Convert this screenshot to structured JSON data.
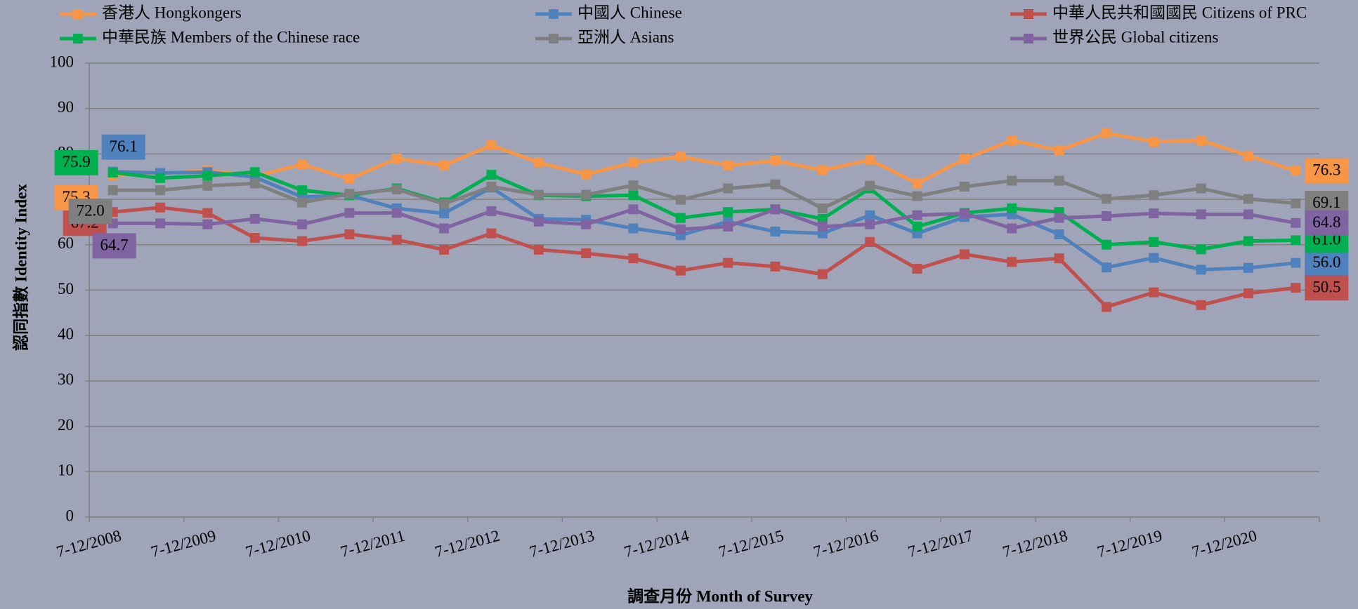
{
  "chart_data": {
    "type": "line",
    "x_label": "調查月份 Month of Survey",
    "y_label": "認同指數 Identity Index",
    "categories": [
      "7-12/2008",
      null,
      "7-12/2009",
      null,
      "7-12/2010",
      null,
      "7-12/2011",
      null,
      "7-12/2012",
      null,
      "7-12/2013",
      null,
      "7-12/2014",
      null,
      "7-12/2015",
      null,
      "7-12/2016",
      null,
      "7-12/2017",
      null,
      "7-12/2018",
      null,
      "7-12/2019",
      null,
      "7-12/2020",
      null
    ],
    "ylim": [
      0,
      100
    ],
    "yticks": [
      0,
      10,
      20,
      30,
      40,
      50,
      60,
      70,
      80,
      90,
      100
    ],
    "grid": true,
    "series": [
      {
        "name": "香港人 Hongkongers",
        "color": "#f79646",
        "values": [
          75.3,
          75.6,
          76.4,
          75.1,
          77.7,
          74.5,
          79.0,
          77.5,
          81.9,
          78.1,
          75.5,
          78.1,
          79.4,
          77.5,
          78.5,
          76.4,
          78.7,
          73.5,
          78.9,
          83.0,
          80.8,
          84.6,
          82.7,
          83.0,
          79.6,
          76.3
        ],
        "value_labels": [
          "75.3",
          null,
          null,
          null,
          null,
          null,
          null,
          null,
          null,
          null,
          null,
          null,
          null,
          null,
          null,
          null,
          null,
          null,
          null,
          null,
          null,
          null,
          null,
          null,
          null,
          "76.3"
        ]
      },
      {
        "name": "中國人 Chinese",
        "color": "#4f81bd",
        "values": [
          76.1,
          75.8,
          76.0,
          74.9,
          70.5,
          70.9,
          68.0,
          66.9,
          72.6,
          65.7,
          65.5,
          63.6,
          62.1,
          65.1,
          62.9,
          62.5,
          66.5,
          62.5,
          66.1,
          66.7,
          62.3,
          55.0,
          57.1,
          54.5,
          54.9,
          56.0
        ],
        "value_labels": [
          "76.1",
          null,
          null,
          null,
          null,
          null,
          null,
          null,
          null,
          null,
          null,
          null,
          null,
          null,
          null,
          null,
          null,
          null,
          null,
          null,
          null,
          null,
          null,
          null,
          null,
          "56.0"
        ]
      },
      {
        "name": "中華人民共和國國民 Citizens of PRC",
        "color": "#c0504d",
        "values": [
          67.2,
          68.2,
          67.0,
          61.5,
          60.8,
          62.3,
          61.1,
          58.9,
          62.5,
          58.9,
          58.1,
          57.0,
          54.3,
          56.0,
          55.2,
          53.5,
          60.6,
          54.7,
          57.9,
          56.2,
          57.0,
          46.3,
          49.5,
          46.7,
          49.3,
          50.5
        ],
        "value_labels": [
          "67.2",
          null,
          null,
          null,
          null,
          null,
          null,
          null,
          null,
          null,
          null,
          null,
          null,
          null,
          null,
          null,
          null,
          null,
          null,
          null,
          null,
          null,
          null,
          null,
          null,
          "50.5"
        ]
      },
      {
        "name": "中華民族 Members of the Chinese race",
        "color": "#00b050",
        "values": [
          75.9,
          74.7,
          75.2,
          76.0,
          72.0,
          70.9,
          72.4,
          69.3,
          75.4,
          70.9,
          70.7,
          70.9,
          65.9,
          67.2,
          67.8,
          65.7,
          72.4,
          64.0,
          67.0,
          68.0,
          67.2,
          60.0,
          60.6,
          59.0,
          60.8,
          61.0
        ],
        "value_labels": [
          "75.9",
          null,
          null,
          null,
          null,
          null,
          null,
          null,
          null,
          null,
          null,
          null,
          null,
          null,
          null,
          null,
          null,
          null,
          null,
          null,
          null,
          null,
          null,
          null,
          null,
          "61.0"
        ]
      },
      {
        "name": "亞洲人 Asians",
        "color": "#7f7f7f",
        "values": [
          72.0,
          72.0,
          73.0,
          73.5,
          69.3,
          71.2,
          72.2,
          69.0,
          72.8,
          71.0,
          71.0,
          73.1,
          69.9,
          72.4,
          73.3,
          68.0,
          73.0,
          70.7,
          72.8,
          74.1,
          74.1,
          70.1,
          70.9,
          72.4,
          70.1,
          69.1
        ],
        "value_labels": [
          "72.0",
          null,
          null,
          null,
          null,
          null,
          null,
          null,
          null,
          null,
          null,
          null,
          null,
          null,
          null,
          null,
          null,
          null,
          null,
          null,
          null,
          null,
          null,
          null,
          null,
          "69.1"
        ]
      },
      {
        "name": "世界公民 Global citizens",
        "color": "#8064a2",
        "values": [
          64.7,
          64.7,
          64.5,
          65.7,
          64.5,
          67.0,
          67.0,
          63.6,
          67.4,
          65.1,
          64.5,
          67.8,
          63.4,
          64.0,
          67.8,
          64.0,
          64.5,
          66.5,
          66.9,
          63.6,
          65.9,
          66.3,
          66.9,
          66.7,
          66.7,
          64.8
        ],
        "value_labels": [
          "64.7",
          null,
          null,
          null,
          null,
          null,
          null,
          null,
          null,
          null,
          null,
          null,
          null,
          null,
          null,
          null,
          null,
          null,
          null,
          null,
          null,
          null,
          null,
          null,
          null,
          "64.8"
        ]
      }
    ]
  }
}
